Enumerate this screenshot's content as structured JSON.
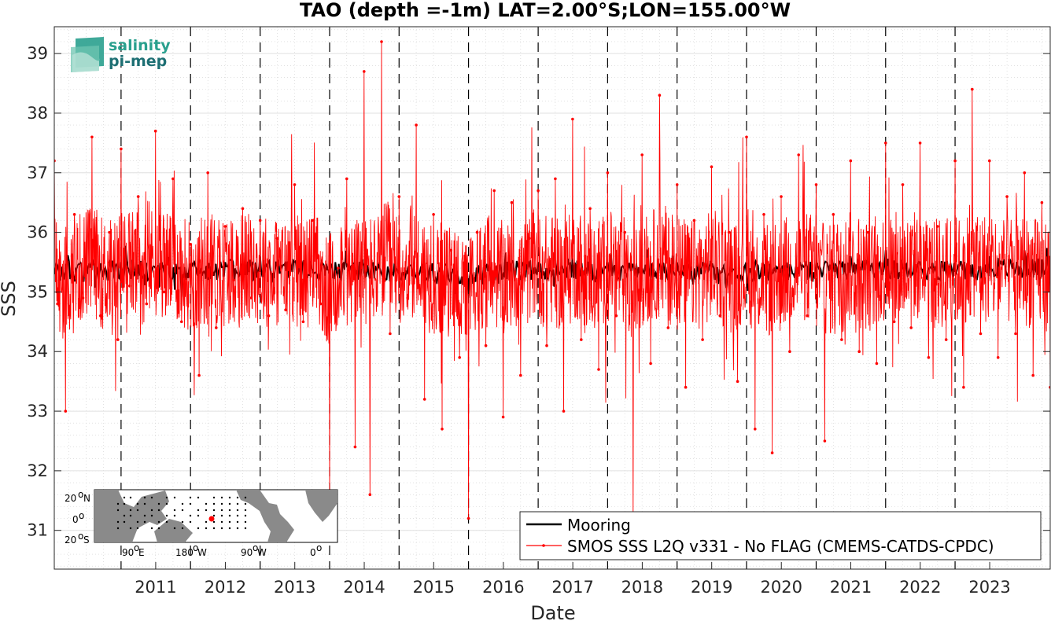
{
  "chart_data": {
    "type": "line",
    "title": "TAO (depth =-1m) LAT=2.00°S;LON=155.00°W",
    "xlabel": "Date",
    "ylabel": "SSS",
    "xlim": [
      "2010-01-15",
      "2024-05-15"
    ],
    "ylim": [
      30.35,
      39.45
    ],
    "yticks": [
      31,
      32,
      33,
      34,
      35,
      36,
      37,
      38,
      39
    ],
    "xticks": [
      "2011",
      "2012",
      "2013",
      "2014",
      "2015",
      "2016",
      "2017",
      "2018",
      "2019",
      "2020",
      "2021",
      "2022",
      "2023"
    ],
    "year_boundaries": [
      "2011-01-01",
      "2012-01-01",
      "2013-01-01",
      "2014-01-01",
      "2015-01-01",
      "2016-01-01",
      "2017-01-01",
      "2018-01-01",
      "2019-01-01",
      "2020-01-01",
      "2021-01-01",
      "2022-01-01",
      "2023-01-01"
    ],
    "grid": true,
    "legend_position": "bottom-right",
    "series": [
      {
        "name": "Mooring",
        "color": "#000000",
        "style": "line",
        "x": [
          "2010-01-15",
          "2010-07-01",
          "2011-01-01",
          "2011-07-01",
          "2012-01-01",
          "2012-07-01",
          "2013-01-01",
          "2013-07-01",
          "2014-01-01",
          "2014-07-01",
          "2015-01-01",
          "2015-07-01",
          "2016-01-01",
          "2016-07-01",
          "2017-01-01",
          "2017-07-01",
          "2018-01-01",
          "2018-07-01",
          "2019-01-01",
          "2019-07-01",
          "2020-01-01",
          "2020-07-01",
          "2021-01-01",
          "2021-07-01",
          "2022-01-01",
          "2022-07-01",
          "2023-01-01",
          "2023-07-01",
          "2024-01-01",
          "2024-05-15"
        ],
        "y": [
          35.3,
          35.4,
          35.5,
          35.4,
          35.3,
          35.5,
          35.6,
          35.5,
          35.3,
          35.4,
          35.3,
          35.2,
          34.9,
          35.3,
          35.5,
          35.6,
          35.5,
          35.4,
          35.5,
          35.4,
          35.3,
          35.4,
          35.5,
          35.6,
          35.7,
          35.5,
          35.4,
          35.6,
          35.7,
          35.6
        ]
      },
      {
        "name": "SMOS SSS L2Q v331 - No FLAG  (CMEMS-CATDS-CPDC)",
        "color": "#ff0000",
        "style": "line-with-dots",
        "x": [
          "2010-01-15",
          "2010-02-01",
          "2010-03-15",
          "2010-05-01",
          "2010-06-15",
          "2010-08-01",
          "2010-09-15",
          "2010-11-01",
          "2010-12-15",
          "2011-01-01",
          "2011-02-15",
          "2011-04-01",
          "2011-05-15",
          "2011-07-01",
          "2011-08-15",
          "2011-10-01",
          "2011-11-15",
          "2012-01-01",
          "2012-02-15",
          "2012-04-01",
          "2012-05-15",
          "2012-07-01",
          "2012-08-15",
          "2012-10-01",
          "2012-11-15",
          "2013-01-01",
          "2013-02-15",
          "2013-04-01",
          "2013-05-15",
          "2013-07-01",
          "2013-08-15",
          "2013-10-01",
          "2013-11-15",
          "2014-01-01",
          "2014-02-15",
          "2014-04-01",
          "2014-05-15",
          "2014-07-01",
          "2014-08-01",
          "2014-10-01",
          "2014-11-15",
          "2015-01-01",
          "2015-02-15",
          "2015-04-01",
          "2015-05-15",
          "2015-07-01",
          "2015-08-15",
          "2015-10-01",
          "2015-11-15",
          "2016-01-01",
          "2016-02-15",
          "2016-04-01",
          "2016-05-15",
          "2016-07-01",
          "2016-08-15",
          "2016-10-01",
          "2016-11-15",
          "2017-01-01",
          "2017-02-15",
          "2017-04-01",
          "2017-05-15",
          "2017-07-01",
          "2017-08-15",
          "2017-10-01",
          "2017-11-15",
          "2018-01-01",
          "2018-02-15",
          "2018-04-01",
          "2018-05-15",
          "2018-07-01",
          "2018-08-15",
          "2018-10-01",
          "2018-11-15",
          "2019-01-01",
          "2019-02-15",
          "2019-04-01",
          "2019-05-15",
          "2019-07-01",
          "2019-08-15",
          "2019-10-01",
          "2019-11-15",
          "2020-01-01",
          "2020-02-15",
          "2020-04-01",
          "2020-05-15",
          "2020-07-01",
          "2020-08-15",
          "2020-10-01",
          "2020-11-15",
          "2021-01-01",
          "2021-02-15",
          "2021-04-01",
          "2021-05-15",
          "2021-07-01",
          "2021-08-15",
          "2021-10-01",
          "2021-11-15",
          "2022-01-01",
          "2022-02-15",
          "2022-04-01",
          "2022-05-15",
          "2022-07-01",
          "2022-08-15",
          "2022-10-01",
          "2022-11-15",
          "2023-01-01",
          "2023-02-15",
          "2023-04-01",
          "2023-05-15",
          "2023-07-01",
          "2023-08-15",
          "2023-10-01",
          "2023-11-15",
          "2024-01-01",
          "2024-02-15",
          "2024-04-01",
          "2024-05-15"
        ],
        "y": [
          37.2,
          34.8,
          33.0,
          36.3,
          34.9,
          37.6,
          34.6,
          36.0,
          34.2,
          37.4,
          35.1,
          36.6,
          34.8,
          37.7,
          35.0,
          36.9,
          34.5,
          35.8,
          33.6,
          37.0,
          34.4,
          36.1,
          35.2,
          36.4,
          34.9,
          36.2,
          34.6,
          35.9,
          34.7,
          36.8,
          34.5,
          36.2,
          34.8,
          31.5,
          35.4,
          36.9,
          32.4,
          38.7,
          31.6,
          39.2,
          34.3,
          36.6,
          34.9,
          37.8,
          33.2,
          36.3,
          32.7,
          35.7,
          33.9,
          31.2,
          36.0,
          34.1,
          36.7,
          32.9,
          36.5,
          33.6,
          35.9,
          36.7,
          34.1,
          36.9,
          33.0,
          37.9,
          34.2,
          36.4,
          33.7,
          37.0,
          34.6,
          36.0,
          31.2,
          37.3,
          33.8,
          38.3,
          34.4,
          36.8,
          33.4,
          36.2,
          34.2,
          37.1,
          34.6,
          36.0,
          33.5,
          37.6,
          32.7,
          36.3,
          32.3,
          36.6,
          34.0,
          37.3,
          34.6,
          36.8,
          32.5,
          36.3,
          34.2,
          37.2,
          34.0,
          36.0,
          33.8,
          37.5,
          34.5,
          36.8,
          34.4,
          37.5,
          33.9,
          36.1,
          34.2,
          37.2,
          33.4,
          38.4,
          34.3,
          37.2,
          33.9,
          36.6,
          34.3,
          37.0,
          33.6,
          36.5,
          33.4
        ]
      }
    ]
  }
}
